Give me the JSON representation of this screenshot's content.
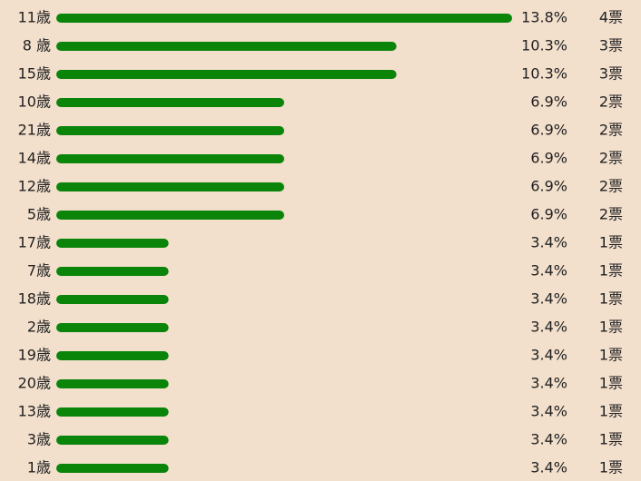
{
  "chart_data": {
    "type": "bar",
    "orientation": "horizontal",
    "color": "#0a850a",
    "categories": [
      "11歳",
      "8 歳",
      "15歳",
      "10歳",
      "21歳",
      "14歳",
      "12歳",
      "5歳",
      "17歳",
      "7歳",
      "18歳",
      "2歳",
      "19歳",
      "20歳",
      "13歳",
      "3歳",
      "1歳"
    ],
    "values": [
      13.8,
      10.3,
      10.3,
      6.9,
      6.9,
      6.9,
      6.9,
      6.9,
      3.4,
      3.4,
      3.4,
      3.4,
      3.4,
      3.4,
      3.4,
      3.4,
      3.4
    ],
    "value_labels": [
      "13.8%",
      "10.3%",
      "10.3%",
      "6.9%",
      "6.9%",
      "6.9%",
      "6.9%",
      "6.9%",
      "3.4%",
      "3.4%",
      "3.4%",
      "3.4%",
      "3.4%",
      "3.4%",
      "3.4%",
      "3.4%",
      "3.4%"
    ],
    "vote_labels": [
      "4票",
      "3票",
      "3票",
      "2票",
      "2票",
      "2票",
      "2票",
      "2票",
      "1票",
      "1票",
      "1票",
      "1票",
      "1票",
      "1票",
      "1票",
      "1票",
      "1票"
    ]
  }
}
